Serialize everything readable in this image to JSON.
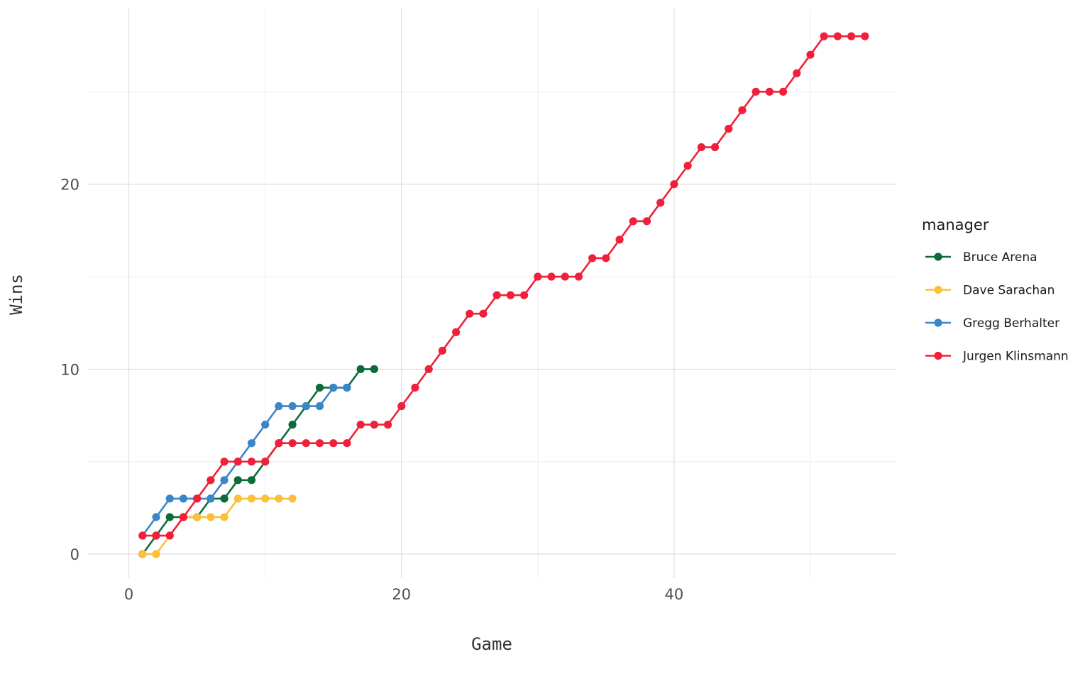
{
  "chart_data": {
    "type": "line",
    "title": "",
    "xlabel": "Game",
    "ylabel": "Wins",
    "xlim": [
      -3,
      56.3
    ],
    "ylim": [
      -1.3,
      29.5
    ],
    "x_ticks": [
      0,
      20,
      40
    ],
    "y_ticks": [
      0,
      10,
      20
    ],
    "x_minor": [
      10,
      30,
      50
    ],
    "y_minor": [
      5,
      15,
      25
    ],
    "grid": true,
    "legend_title": "manager",
    "legend_position": "right",
    "series": [
      {
        "name": "Bruce Arena",
        "color": "#0d6b3a",
        "x": [
          1,
          2,
          3,
          4,
          5,
          6,
          7,
          8,
          9,
          10,
          11,
          12,
          13,
          14,
          15,
          16,
          17,
          18
        ],
        "y": [
          0,
          1,
          2,
          2,
          2,
          3,
          3,
          4,
          4,
          5,
          6,
          7,
          8,
          9,
          9,
          9,
          10,
          10
        ]
      },
      {
        "name": "Dave Sarachan",
        "color": "#fbbf3a",
        "x": [
          1,
          2,
          3,
          4,
          5,
          6,
          7,
          8,
          9,
          10,
          11,
          12
        ],
        "y": [
          0,
          0,
          1,
          2,
          2,
          2,
          2,
          3,
          3,
          3,
          3,
          3
        ]
      },
      {
        "name": "Gregg Berhalter",
        "color": "#3a86c8",
        "x": [
          1,
          2,
          3,
          4,
          5,
          6,
          7,
          8,
          9,
          10,
          11,
          12,
          13,
          14,
          15,
          16
        ],
        "y": [
          1,
          2,
          3,
          3,
          3,
          3,
          4,
          5,
          6,
          7,
          8,
          8,
          8,
          8,
          9,
          9
        ]
      },
      {
        "name": "Jurgen Klinsmann",
        "color": "#f0203a",
        "x": [
          1,
          2,
          3,
          4,
          5,
          6,
          7,
          8,
          9,
          10,
          11,
          12,
          13,
          14,
          15,
          16,
          17,
          18,
          19,
          20,
          21,
          22,
          23,
          24,
          25,
          26,
          27,
          28,
          29,
          30,
          31,
          32,
          33,
          34,
          35,
          36,
          37,
          38,
          39,
          40,
          41,
          42,
          43,
          44,
          45,
          46,
          47,
          48,
          49,
          50,
          51,
          52,
          53,
          54
        ],
        "y": [
          1,
          1,
          1,
          2,
          3,
          4,
          5,
          5,
          5,
          5,
          6,
          6,
          6,
          6,
          6,
          6,
          7,
          7,
          7,
          8,
          9,
          10,
          11,
          12,
          13,
          13,
          14,
          14,
          14,
          15,
          15,
          15,
          15,
          16,
          16,
          17,
          18,
          18,
          19,
          20,
          21,
          22,
          22,
          23,
          24,
          25,
          25,
          25,
          26,
          27,
          28,
          28,
          28,
          28
        ]
      }
    ]
  }
}
